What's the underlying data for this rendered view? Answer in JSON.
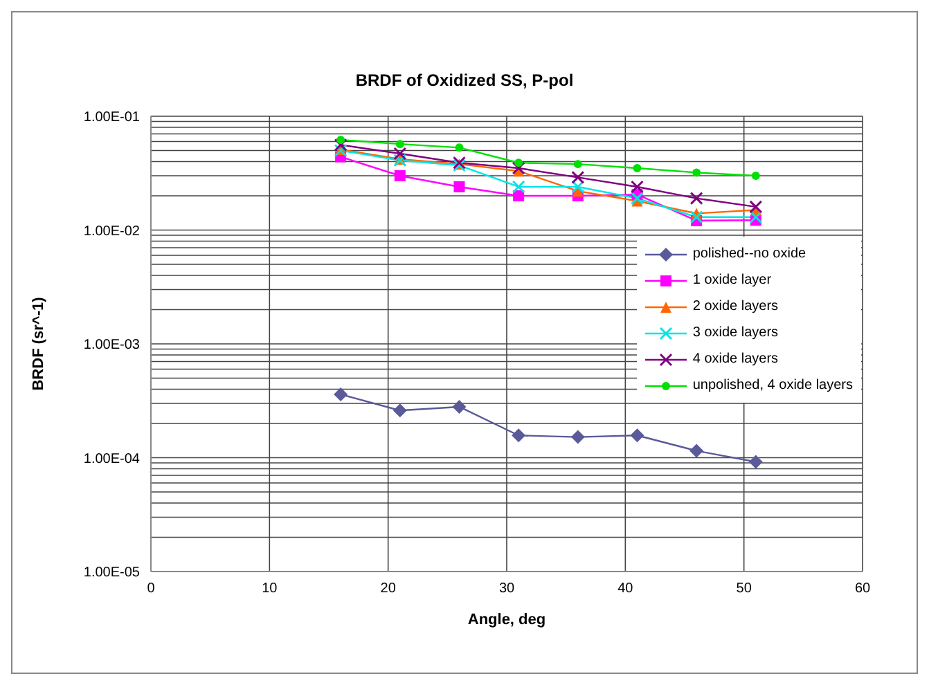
{
  "chart_data": {
    "type": "line",
    "title": "BRDF of Oxidized SS, P-pol",
    "xlabel": "Angle, deg",
    "ylabel": "BRDF (sr^-1)",
    "x": [
      16,
      21,
      26,
      31,
      36,
      41,
      46,
      51
    ],
    "series": [
      {
        "name": "polished--no oxide",
        "color": "#5a5a9a",
        "marker": "diamond",
        "values": [
          0.00036,
          0.00026,
          0.00028,
          0.000157,
          0.000152,
          0.000157,
          0.000115,
          9.2e-05
        ]
      },
      {
        "name": "1 oxide layer",
        "color": "#ff00ff",
        "marker": "square",
        "values": [
          0.044,
          0.03,
          0.024,
          0.02,
          0.02,
          0.0205,
          0.0121,
          0.0122
        ]
      },
      {
        "name": "2 oxide layers",
        "color": "#ff6600",
        "marker": "triangle",
        "values": [
          0.051,
          0.042,
          0.038,
          0.033,
          0.022,
          0.018,
          0.014,
          0.015
        ]
      },
      {
        "name": "3 oxide layers",
        "color": "#00e5e5",
        "marker": "cross",
        "values": [
          0.05,
          0.041,
          0.037,
          0.024,
          0.024,
          0.019,
          0.013,
          0.013
        ]
      },
      {
        "name": "4 oxide layers",
        "color": "#800080",
        "marker": "cross",
        "values": [
          0.056,
          0.047,
          0.039,
          0.035,
          0.029,
          0.024,
          0.019,
          0.016
        ]
      },
      {
        "name": "unpolished, 4 oxide layers",
        "color": "#00e000",
        "marker": "circle",
        "values": [
          0.062,
          0.057,
          0.053,
          0.039,
          0.038,
          0.035,
          0.032,
          0.03
        ]
      }
    ],
    "xlim": [
      0,
      60
    ],
    "xticks": [
      0,
      10,
      20,
      30,
      40,
      50,
      60
    ],
    "ylim": [
      1e-05,
      0.1
    ],
    "log": "y",
    "yticks": [
      {
        "value": 1e-05,
        "label": "1.00E-05"
      },
      {
        "value": 2e-05,
        "label": null
      },
      {
        "value": 3e-05,
        "label": null
      },
      {
        "value": 4e-05,
        "label": null
      },
      {
        "value": 5e-05,
        "label": null
      },
      {
        "value": 6e-05,
        "label": null
      },
      {
        "value": 7e-05,
        "label": null
      },
      {
        "value": 8e-05,
        "label": null
      },
      {
        "value": 9e-05,
        "label": null
      },
      {
        "value": 0.0001,
        "label": "1.00E-04"
      },
      {
        "value": 0.0002,
        "label": null
      },
      {
        "value": 0.0003,
        "label": null
      },
      {
        "value": 0.0004,
        "label": null
      },
      {
        "value": 0.0005,
        "label": null
      },
      {
        "value": 0.0006,
        "label": null
      },
      {
        "value": 0.0007,
        "label": null
      },
      {
        "value": 0.0008,
        "label": null
      },
      {
        "value": 0.0009,
        "label": null
      },
      {
        "value": 0.001,
        "label": "1.00E-03"
      },
      {
        "value": 0.002,
        "label": null
      },
      {
        "value": 0.003,
        "label": null
      },
      {
        "value": 0.004,
        "label": null
      },
      {
        "value": 0.005,
        "label": null
      },
      {
        "value": 0.006,
        "label": null
      },
      {
        "value": 0.007,
        "label": null
      },
      {
        "value": 0.008,
        "label": null
      },
      {
        "value": 0.009,
        "label": null
      },
      {
        "value": 0.01,
        "label": "1.00E-02"
      },
      {
        "value": 0.02,
        "label": null
      },
      {
        "value": 0.03,
        "label": null
      },
      {
        "value": 0.04,
        "label": null
      },
      {
        "value": 0.05,
        "label": null
      },
      {
        "value": 0.06,
        "label": null
      },
      {
        "value": 0.07,
        "label": null
      },
      {
        "value": 0.08,
        "label": null
      },
      {
        "value": 0.09,
        "label": null
      },
      {
        "value": 0.1,
        "label": "1.00E-01"
      }
    ],
    "grid": true,
    "legend": "right",
    "line_style": "solid"
  }
}
